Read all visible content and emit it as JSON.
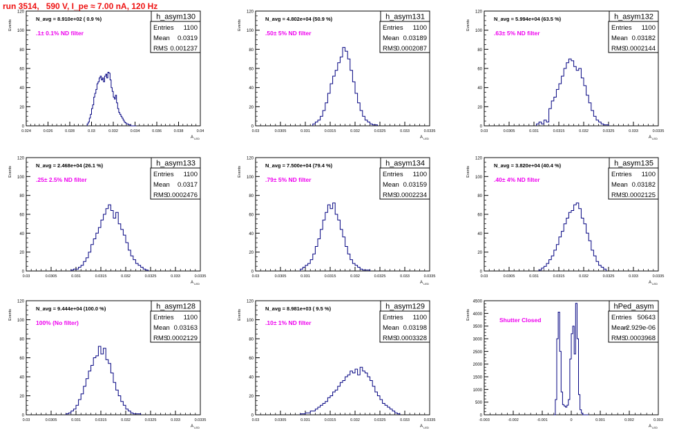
{
  "page_title": "run 3514,   590 V, I_pe ≈ 7.00 nA, 120 Hz",
  "colors": {
    "title": "#ee1111",
    "annotation": "#ee00ee",
    "histogram": "#000080",
    "axis": "#000000",
    "background": "#ffffff"
  },
  "chart_data": [
    {
      "type": "histogram",
      "name": "h_asym130",
      "navg_label": "N_avg = 8.910e+02 ( 0.9 %)",
      "filter_label": ".1± 0.1% ND filter",
      "stats": [
        {
          "label": "Entries",
          "value": "1100"
        },
        {
          "label": "Mean",
          "value": "0.0319"
        },
        {
          "label": "RMS",
          "value": "0.001237"
        }
      ],
      "ylabel": "Events",
      "xlabel": "A_LED",
      "xlim": [
        0.024,
        0.04
      ],
      "ylim": [
        0,
        120
      ],
      "xticks": [
        "0.024",
        "0.026",
        "0.028",
        "0.03",
        "0.032",
        "0.034",
        "0.036",
        "0.038",
        "0.04"
      ],
      "yticks": [
        "0",
        "20",
        "40",
        "60",
        "80",
        "100",
        "120"
      ],
      "bin_edges": [
        0.0296,
        0.0297,
        0.0298,
        0.0299,
        0.03,
        0.0301,
        0.0302,
        0.0303,
        0.0304,
        0.0305,
        0.0306,
        0.0307,
        0.0308,
        0.0309,
        0.031,
        0.0311,
        0.0312,
        0.0313,
        0.0314,
        0.0315,
        0.0316,
        0.0317,
        0.0318,
        0.0319,
        0.032,
        0.0321,
        0.0322,
        0.0323,
        0.0324,
        0.0325,
        0.0326,
        0.0327,
        0.0328,
        0.0329,
        0.033,
        0.0331,
        0.0332,
        0.0333,
        0.0334,
        0.0335,
        0.0336,
        0.0337,
        0.0338,
        0.0339,
        0.034,
        0.0341
      ],
      "counts": [
        2,
        4,
        8,
        12,
        18,
        22,
        30,
        34,
        38,
        44,
        46,
        50,
        52,
        48,
        50,
        46,
        52,
        54,
        50,
        56,
        55,
        48,
        40,
        36,
        30,
        28,
        32,
        24,
        18,
        14,
        12,
        10,
        8,
        6,
        4,
        3,
        2,
        2,
        1,
        1,
        0,
        0,
        0,
        0,
        0
      ]
    },
    {
      "type": "histogram",
      "name": "h_asym131",
      "navg_label": "N_avg = 4.802e+04 (50.9 %)",
      "filter_label": ".50± 5% ND filter",
      "stats": [
        {
          "label": "Entries",
          "value": "1100"
        },
        {
          "label": "Mean",
          "value": "0.03189"
        },
        {
          "label": "RMS",
          "value": "0.0002087"
        }
      ],
      "ylabel": "Events",
      "xlabel": "A_LED",
      "xlim": [
        0.03,
        0.0335
      ],
      "ylim": [
        0,
        120
      ],
      "xticks": [
        "0.03",
        "0.0305",
        "0.031",
        "0.0315",
        "0.032",
        "0.0325",
        "0.033",
        "0.0335"
      ],
      "yticks": [
        "0",
        "20",
        "40",
        "60",
        "80",
        "100",
        "120"
      ],
      "bin_edges": [
        0.03115,
        0.0312,
        0.03125,
        0.0313,
        0.03135,
        0.0314,
        0.03145,
        0.0315,
        0.03155,
        0.0316,
        0.03165,
        0.0317,
        0.03175,
        0.0318,
        0.03185,
        0.0319,
        0.03195,
        0.032,
        0.03205,
        0.0321,
        0.03215,
        0.0322,
        0.03225,
        0.0323,
        0.03235,
        0.0324,
        0.03245
      ],
      "counts": [
        2,
        4,
        6,
        10,
        16,
        24,
        34,
        44,
        52,
        58,
        66,
        72,
        82,
        78,
        70,
        58,
        46,
        34,
        24,
        16,
        10,
        6,
        4,
        2,
        1,
        1
      ]
    },
    {
      "type": "histogram",
      "name": "h_asym132",
      "navg_label": "N_avg = 5.994e+04 (63.5 %)",
      "filter_label": ".63± 5% ND filter",
      "stats": [
        {
          "label": "Entries",
          "value": "1100"
        },
        {
          "label": "Mean",
          "value": "0.03182"
        },
        {
          "label": "RMS",
          "value": "0.0002144"
        }
      ],
      "ylabel": "Events",
      "xlabel": "A_LED",
      "xlim": [
        0.03,
        0.0335
      ],
      "ylim": [
        0,
        120
      ],
      "xticks": [
        "0.03",
        "0.0305",
        "0.031",
        "0.0315",
        "0.032",
        "0.0325",
        "0.033",
        "0.0335"
      ],
      "yticks": [
        "0",
        "20",
        "40",
        "60",
        "80",
        "100",
        "120"
      ],
      "bin_edges": [
        0.03105,
        0.0311,
        0.03115,
        0.0312,
        0.03125,
        0.0313,
        0.03135,
        0.0314,
        0.03145,
        0.0315,
        0.03155,
        0.0316,
        0.03165,
        0.0317,
        0.03175,
        0.0318,
        0.03185,
        0.0319,
        0.03195,
        0.032,
        0.03205,
        0.0321,
        0.03215,
        0.0322,
        0.03225,
        0.0323,
        0.03235,
        0.0324,
        0.03245,
        0.0325
      ],
      "counts": [
        2,
        4,
        2,
        6,
        4,
        18,
        26,
        30,
        38,
        44,
        52,
        60,
        66,
        70,
        68,
        62,
        58,
        60,
        50,
        42,
        32,
        24,
        16,
        10,
        6,
        4,
        2,
        1,
        1
      ]
    },
    {
      "type": "histogram",
      "name": "h_asym133",
      "navg_label": "N_avg = 2.468e+04 (26.1 %)",
      "filter_label": ".25± 2.5% ND filter",
      "stats": [
        {
          "label": "Entries",
          "value": "1100"
        },
        {
          "label": "Mean",
          "value": "0.0317"
        },
        {
          "label": "RMS",
          "value": "0.0002476"
        }
      ],
      "ylabel": "Events",
      "xlabel": "A_LED",
      "xlim": [
        0.03,
        0.0335
      ],
      "ylim": [
        0,
        120
      ],
      "xticks": [
        "0.03",
        "0.0305",
        "0.031",
        "0.0315",
        "0.032",
        "0.0325",
        "0.033",
        "0.0335"
      ],
      "yticks": [
        "0",
        "20",
        "40",
        "60",
        "80",
        "100",
        "120"
      ],
      "bin_edges": [
        0.0309,
        0.03095,
        0.031,
        0.03105,
        0.0311,
        0.03115,
        0.0312,
        0.03125,
        0.0313,
        0.03135,
        0.0314,
        0.03145,
        0.0315,
        0.03155,
        0.0316,
        0.03165,
        0.0317,
        0.03175,
        0.0318,
        0.03185,
        0.0319,
        0.03195,
        0.032,
        0.03205,
        0.0321,
        0.03215,
        0.0322,
        0.03225,
        0.0323,
        0.03235,
        0.0324,
        0.03245
      ],
      "counts": [
        1,
        2,
        2,
        4,
        6,
        10,
        14,
        20,
        28,
        34,
        40,
        46,
        54,
        60,
        66,
        70,
        64,
        56,
        62,
        50,
        44,
        38,
        30,
        22,
        16,
        12,
        8,
        6,
        4,
        2,
        1
      ]
    },
    {
      "type": "histogram",
      "name": "h_asym134",
      "navg_label": "N_avg = 7.500e+04 (79.4 %)",
      "filter_label": ".79± 5% ND filter",
      "stats": [
        {
          "label": "Entries",
          "value": "1100"
        },
        {
          "label": "Mean",
          "value": "0.03159"
        },
        {
          "label": "RMS",
          "value": "0.0002234"
        }
      ],
      "ylabel": "Events",
      "xlabel": "A_LED",
      "xlim": [
        0.03,
        0.0335
      ],
      "ylim": [
        0,
        120
      ],
      "xticks": [
        "0.03",
        "0.0305",
        "0.031",
        "0.0315",
        "0.032",
        "0.0325",
        "0.033",
        "0.0335"
      ],
      "yticks": [
        "0",
        "20",
        "40",
        "60",
        "80",
        "100",
        "120"
      ],
      "bin_edges": [
        0.0309,
        0.03095,
        0.031,
        0.03105,
        0.0311,
        0.03115,
        0.0312,
        0.03125,
        0.0313,
        0.03135,
        0.0314,
        0.03145,
        0.0315,
        0.03155,
        0.0316,
        0.03165,
        0.0317,
        0.03175,
        0.0318,
        0.03185,
        0.0319,
        0.03195,
        0.032,
        0.03205,
        0.0321,
        0.03215,
        0.0322,
        0.03225,
        0.0323
      ],
      "counts": [
        2,
        4,
        6,
        8,
        12,
        18,
        26,
        34,
        44,
        54,
        62,
        70,
        66,
        72,
        60,
        54,
        44,
        36,
        26,
        18,
        12,
        8,
        6,
        4,
        2,
        1,
        1,
        1
      ]
    },
    {
      "type": "histogram",
      "name": "h_asym135",
      "navg_label": "N_avg = 3.820e+04 (40.4 %)",
      "filter_label": ".40± 4% ND filter",
      "stats": [
        {
          "label": "Entries",
          "value": "1100"
        },
        {
          "label": "Mean",
          "value": "0.03182"
        },
        {
          "label": "RMS",
          "value": "0.0002125"
        }
      ],
      "ylabel": "Events",
      "xlabel": "A_LED",
      "xlim": [
        0.03,
        0.0335
      ],
      "ylim": [
        0,
        120
      ],
      "xticks": [
        "0.03",
        "0.0305",
        "0.031",
        "0.0315",
        "0.032",
        "0.0325",
        "0.033",
        "0.0335"
      ],
      "yticks": [
        "0",
        "20",
        "40",
        "60",
        "80",
        "100",
        "120"
      ],
      "bin_edges": [
        0.0311,
        0.03115,
        0.0312,
        0.03125,
        0.0313,
        0.03135,
        0.0314,
        0.03145,
        0.0315,
        0.03155,
        0.0316,
        0.03165,
        0.0317,
        0.03175,
        0.0318,
        0.03185,
        0.0319,
        0.03195,
        0.032,
        0.03205,
        0.0321,
        0.03215,
        0.0322,
        0.03225,
        0.0323,
        0.03235,
        0.0324,
        0.03245
      ],
      "counts": [
        1,
        3,
        5,
        8,
        12,
        16,
        22,
        28,
        36,
        42,
        50,
        56,
        62,
        64,
        70,
        72,
        66,
        56,
        50,
        40,
        32,
        22,
        16,
        10,
        6,
        4,
        2
      ]
    },
    {
      "type": "histogram",
      "name": "h_asym128",
      "navg_label": "N_avg = 9.444e+04 (100.0 %)",
      "filter_label": "100% (No filter)",
      "stats": [
        {
          "label": "Entries",
          "value": "1100"
        },
        {
          "label": "Mean",
          "value": "0.03163"
        },
        {
          "label": "RMS",
          "value": "0.0002129"
        }
      ],
      "ylabel": "Events",
      "xlabel": "A_LED",
      "xlim": [
        0.03,
        0.0335
      ],
      "ylim": [
        0,
        120
      ],
      "xticks": [
        "0.03",
        "0.0305",
        "0.031",
        "0.0315",
        "0.032",
        "0.0325",
        "0.033",
        "0.0335"
      ],
      "yticks": [
        "0",
        "20",
        "40",
        "60",
        "80",
        "100",
        "120"
      ],
      "bin_edges": [
        0.0308,
        0.03085,
        0.0309,
        0.03095,
        0.031,
        0.03105,
        0.0311,
        0.03115,
        0.0312,
        0.03125,
        0.0313,
        0.03135,
        0.0314,
        0.03145,
        0.0315,
        0.03155,
        0.0316,
        0.03165,
        0.0317,
        0.03175,
        0.0318,
        0.03185,
        0.0319,
        0.03195,
        0.032,
        0.03205,
        0.0321,
        0.03215,
        0.0322,
        0.03225,
        0.0323
      ],
      "counts": [
        1,
        2,
        4,
        6,
        10,
        16,
        22,
        30,
        38,
        46,
        52,
        60,
        62,
        72,
        64,
        70,
        58,
        54,
        44,
        34,
        26,
        20,
        14,
        10,
        6,
        4,
        2,
        1,
        1,
        1
      ]
    },
    {
      "type": "histogram",
      "name": "h_asym129",
      "navg_label": "N_avg = 8.981e+03 ( 9.5 %)",
      "filter_label": ".10± 1% ND filter",
      "stats": [
        {
          "label": "Entries",
          "value": "1100"
        },
        {
          "label": "Mean",
          "value": "0.03198"
        },
        {
          "label": "RMS",
          "value": "0.0003328"
        }
      ],
      "ylabel": "Events",
      "xlabel": "A_LED",
      "xlim": [
        0.03,
        0.0335
      ],
      "ylim": [
        0,
        120
      ],
      "xticks": [
        "0.03",
        "0.0305",
        "0.031",
        "0.0315",
        "0.032",
        "0.0325",
        "0.033",
        "0.0335"
      ],
      "yticks": [
        "0",
        "20",
        "40",
        "60",
        "80",
        "100",
        "120"
      ],
      "bin_edges": [
        0.0309,
        0.03095,
        0.031,
        0.03105,
        0.0311,
        0.03115,
        0.0312,
        0.03125,
        0.0313,
        0.03135,
        0.0314,
        0.03145,
        0.0315,
        0.03155,
        0.0316,
        0.03165,
        0.0317,
        0.03175,
        0.0318,
        0.03185,
        0.0319,
        0.03195,
        0.032,
        0.03205,
        0.0321,
        0.03215,
        0.0322,
        0.03225,
        0.0323,
        0.03235,
        0.0324,
        0.03245,
        0.0325,
        0.03255,
        0.0326,
        0.03265,
        0.0327,
        0.03275,
        0.0328,
        0.03285,
        0.0329
      ],
      "counts": [
        1,
        1,
        2,
        2,
        4,
        4,
        6,
        8,
        10,
        12,
        14,
        18,
        20,
        24,
        26,
        30,
        34,
        36,
        40,
        42,
        46,
        44,
        48,
        42,
        50,
        46,
        44,
        40,
        36,
        30,
        24,
        20,
        16,
        12,
        10,
        8,
        6,
        4,
        2,
        1
      ]
    },
    {
      "type": "histogram",
      "name": "hPed_asym",
      "navg_label": "",
      "filter_label": "Shutter Closed",
      "stats": [
        {
          "label": "Entries",
          "value": "50643"
        },
        {
          "label": "Mean",
          "value": "-2.929e-06"
        },
        {
          "label": "RMS",
          "value": "0.0003968"
        }
      ],
      "ylabel": "Events",
      "xlabel": "A_LED",
      "xlim": [
        -0.003,
        0.003
      ],
      "ylim": [
        0,
        4500
      ],
      "xticks": [
        "-0.003",
        "-0.002",
        "-0.001",
        "0",
        "0.001",
        "0.002",
        "0.003"
      ],
      "yticks": [
        "0",
        "500",
        "1000",
        "1500",
        "2000",
        "2500",
        "3000",
        "3500",
        "4000",
        "4500"
      ],
      "bin_edges": [
        -0.0006,
        -0.00055,
        -0.0005,
        -0.00045,
        -0.0004,
        -0.00035,
        -0.0003,
        -0.00025,
        -0.0002,
        -0.00015,
        -0.0001,
        -5e-05,
        0,
        5e-05,
        0.0001,
        0.00015,
        0.0002,
        0.00025,
        0.0003,
        0.00035,
        0.0004,
        0.00045,
        0.0005,
        0.00055,
        0.0006
      ],
      "counts": [
        0,
        600,
        3000,
        4050,
        2500,
        900,
        400,
        350,
        300,
        380,
        600,
        2200,
        3200,
        3500,
        2400,
        4400,
        3000,
        800,
        200,
        60,
        0,
        0,
        0,
        0
      ]
    }
  ]
}
